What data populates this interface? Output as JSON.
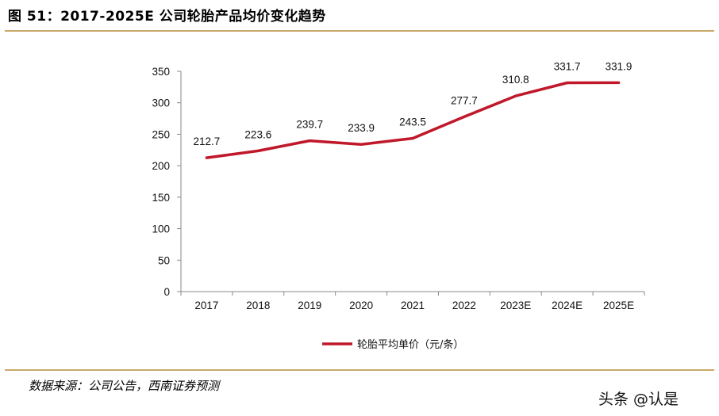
{
  "title": "图 51：2017-2025E 公司轮胎产品均价变化趋势",
  "source": "数据来源：公司公告，西南证券预测",
  "watermark": "头条 @认是",
  "colors": {
    "line": "#c0182a",
    "rule": "#c9a96a",
    "axis": "#888888"
  },
  "chart_data": {
    "type": "line",
    "title": "",
    "xlabel": "",
    "ylabel": "",
    "ylim": [
      0,
      350
    ],
    "yticks": [
      0,
      50,
      100,
      150,
      200,
      250,
      300,
      350
    ],
    "categories": [
      "2017",
      "2018",
      "2019",
      "2020",
      "2021",
      "2022",
      "2023E",
      "2024E",
      "2025E"
    ],
    "series": [
      {
        "name": "轮胎平均单价（元/条）",
        "values": [
          212.7,
          223.6,
          239.7,
          233.9,
          243.5,
          277.7,
          310.8,
          331.7,
          331.9
        ],
        "labels": [
          "212.7",
          "223.6",
          "239.7",
          "233.9",
          "243.5",
          "277.7",
          "310.8",
          "331.7",
          "331.9"
        ]
      }
    ],
    "grid": false,
    "legend": "bottom"
  }
}
